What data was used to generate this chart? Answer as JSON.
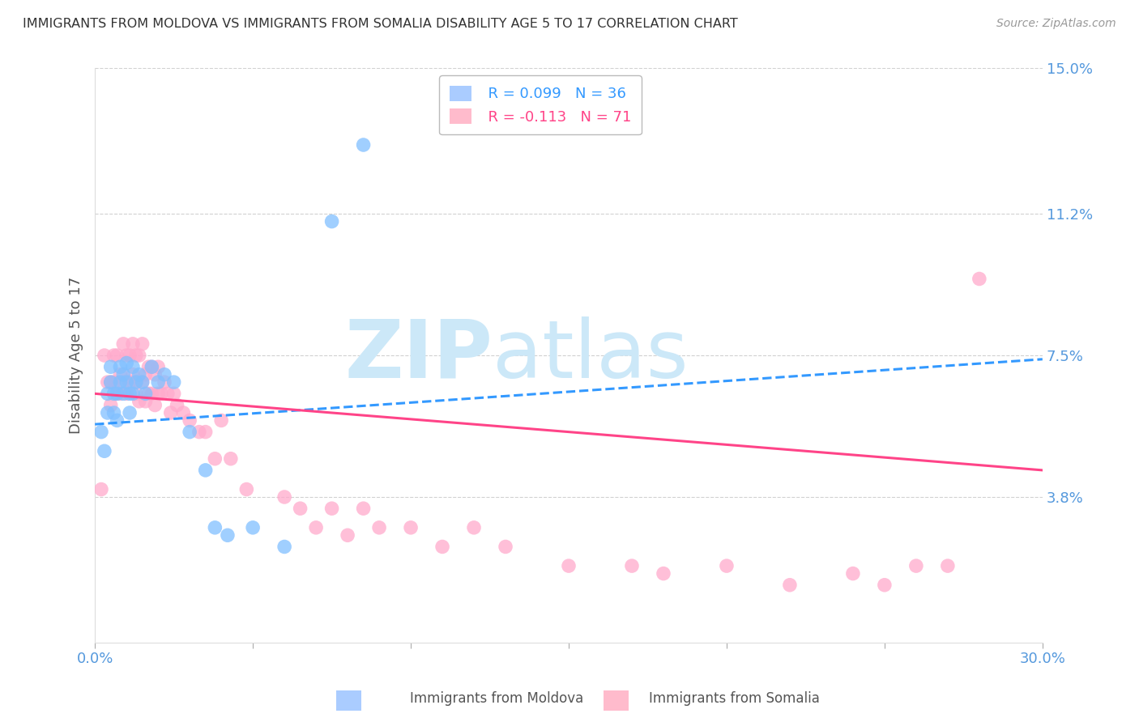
{
  "title": "IMMIGRANTS FROM MOLDOVA VS IMMIGRANTS FROM SOMALIA DISABILITY AGE 5 TO 17 CORRELATION CHART",
  "source": "Source: ZipAtlas.com",
  "ylabel": "Disability Age 5 to 17",
  "xlim": [
    0.0,
    0.3
  ],
  "ylim": [
    0.0,
    0.15
  ],
  "xticks": [
    0.0,
    0.05,
    0.1,
    0.15,
    0.2,
    0.25,
    0.3
  ],
  "xticklabels": [
    "0.0%",
    "",
    "",
    "",
    "",
    "",
    "30.0%"
  ],
  "ytick_positions": [
    0.038,
    0.075,
    0.112,
    0.15
  ],
  "ytick_labels": [
    "3.8%",
    "7.5%",
    "11.2%",
    "15.0%"
  ],
  "moldova_R": 0.099,
  "moldova_N": 36,
  "somalia_R": -0.113,
  "somalia_N": 71,
  "moldova_color": "#80bfff",
  "somalia_color": "#ffaacc",
  "moldova_line_color": "#3399ff",
  "somalia_line_color": "#ff4488",
  "axis_label_color": "#5599dd",
  "title_color": "#333333",
  "grid_color": "#cccccc",
  "watermark_color": "#cce8f8",
  "background_color": "#ffffff",
  "legend_box_color_moldova": "#aaccff",
  "legend_box_color_somalia": "#ffbbcc",
  "moldova_line_x0": 0.0,
  "moldova_line_y0": 0.057,
  "moldova_line_x1": 0.3,
  "moldova_line_y1": 0.074,
  "somalia_line_x0": 0.0,
  "somalia_line_y0": 0.065,
  "somalia_line_x1": 0.3,
  "somalia_line_y1": 0.045,
  "moldova_x": [
    0.002,
    0.003,
    0.004,
    0.004,
    0.005,
    0.005,
    0.006,
    0.006,
    0.007,
    0.007,
    0.008,
    0.008,
    0.009,
    0.009,
    0.01,
    0.01,
    0.011,
    0.011,
    0.012,
    0.012,
    0.013,
    0.014,
    0.015,
    0.016,
    0.018,
    0.02,
    0.022,
    0.025,
    0.03,
    0.035,
    0.038,
    0.042,
    0.05,
    0.06,
    0.075,
    0.085
  ],
  "moldova_y": [
    0.055,
    0.05,
    0.06,
    0.065,
    0.068,
    0.072,
    0.065,
    0.06,
    0.065,
    0.058,
    0.068,
    0.072,
    0.065,
    0.07,
    0.068,
    0.073,
    0.065,
    0.06,
    0.065,
    0.072,
    0.068,
    0.07,
    0.068,
    0.065,
    0.072,
    0.068,
    0.07,
    0.068,
    0.055,
    0.045,
    0.03,
    0.028,
    0.03,
    0.025,
    0.11,
    0.13
  ],
  "somalia_x": [
    0.002,
    0.003,
    0.004,
    0.005,
    0.005,
    0.006,
    0.006,
    0.007,
    0.007,
    0.008,
    0.008,
    0.009,
    0.009,
    0.01,
    0.01,
    0.011,
    0.011,
    0.012,
    0.012,
    0.013,
    0.013,
    0.013,
    0.014,
    0.014,
    0.015,
    0.015,
    0.016,
    0.016,
    0.017,
    0.017,
    0.018,
    0.018,
    0.019,
    0.019,
    0.02,
    0.02,
    0.021,
    0.022,
    0.023,
    0.024,
    0.025,
    0.026,
    0.028,
    0.03,
    0.033,
    0.035,
    0.038,
    0.04,
    0.043,
    0.048,
    0.06,
    0.065,
    0.07,
    0.075,
    0.08,
    0.085,
    0.09,
    0.1,
    0.11,
    0.12,
    0.13,
    0.15,
    0.17,
    0.18,
    0.2,
    0.22,
    0.24,
    0.25,
    0.26,
    0.27,
    0.28
  ],
  "somalia_y": [
    0.04,
    0.075,
    0.068,
    0.062,
    0.068,
    0.075,
    0.068,
    0.075,
    0.065,
    0.07,
    0.065,
    0.078,
    0.068,
    0.075,
    0.065,
    0.075,
    0.068,
    0.078,
    0.07,
    0.075,
    0.068,
    0.065,
    0.075,
    0.063,
    0.078,
    0.068,
    0.07,
    0.063,
    0.072,
    0.065,
    0.072,
    0.065,
    0.07,
    0.062,
    0.072,
    0.065,
    0.065,
    0.068,
    0.065,
    0.06,
    0.065,
    0.062,
    0.06,
    0.058,
    0.055,
    0.055,
    0.048,
    0.058,
    0.048,
    0.04,
    0.038,
    0.035,
    0.03,
    0.035,
    0.028,
    0.035,
    0.03,
    0.03,
    0.025,
    0.03,
    0.025,
    0.02,
    0.02,
    0.018,
    0.02,
    0.015,
    0.018,
    0.015,
    0.02,
    0.02,
    0.095
  ]
}
